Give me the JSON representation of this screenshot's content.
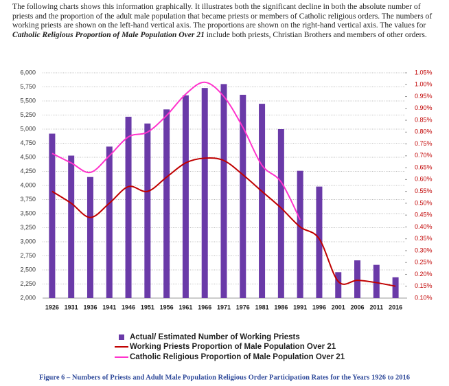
{
  "intro": [
    "The following charts shows this information graphically. It illustrates both the significant decline in both the absolute number of priests and the proportion of the adult male population that became priests or members of Catholic religious orders. The numbers of working priests are shown on the left-hand vertical axis. The proportions are shown on the right-hand vertical axis. The values for ",
    "Catholic Religious Proportion of Male Population Over 21",
    " include both priests, Christian Brothers and members of other orders."
  ],
  "chart_data": {
    "type": "bar",
    "categories": [
      "1926",
      "1931",
      "1936",
      "1941",
      "1946",
      "1951",
      "1956",
      "1961",
      "1966",
      "1971",
      "1976",
      "1981",
      "1986",
      "1991",
      "1996",
      "2001",
      "2006",
      "2011",
      "2016"
    ],
    "series": [
      {
        "name": "Actual/ Estimated Number of Working Priests",
        "type": "bar",
        "color": "#6a3aa8",
        "values": [
          4920,
          4530,
          4150,
          4690,
          5220,
          5100,
          5350,
          5600,
          5730,
          5800,
          5610,
          5450,
          5000,
          4260,
          3980,
          2460,
          2670,
          2590,
          2370
        ]
      },
      {
        "name": "Working Priests Proportion of Male Population Over 21",
        "type": "line",
        "axis": "y2",
        "color": "#c00000",
        "values": [
          0.55,
          0.5,
          0.44,
          0.5,
          0.57,
          0.55,
          0.61,
          0.67,
          0.69,
          0.68,
          0.62,
          0.55,
          0.48,
          0.4,
          0.35,
          0.17,
          0.175,
          0.165,
          0.15
        ]
      },
      {
        "name": "Catholic Religious Proportion of Male Population Over 21",
        "type": "line",
        "axis": "y2",
        "color": "#ff33cc",
        "values": [
          0.71,
          0.67,
          0.63,
          0.7,
          0.78,
          0.8,
          0.87,
          0.96,
          1.01,
          0.95,
          0.82,
          0.66,
          0.59,
          0.43,
          null,
          null,
          null,
          null,
          null
        ]
      }
    ],
    "ylim": [
      2000,
      6000
    ],
    "yticks": [
      {
        "value": 2000,
        "label": "2,000"
      },
      {
        "value": 2250,
        "label": "2,250"
      },
      {
        "value": 2500,
        "label": "2,500"
      },
      {
        "value": 2750,
        "label": "2,750"
      },
      {
        "value": 3000,
        "label": "3,000"
      },
      {
        "value": 3250,
        "label": "3,250"
      },
      {
        "value": 3500,
        "label": "3,500"
      },
      {
        "value": 3750,
        "label": "3,750"
      },
      {
        "value": 4000,
        "label": "4,000"
      },
      {
        "value": 4250,
        "label": "4,250"
      },
      {
        "value": 4500,
        "label": "4,500"
      },
      {
        "value": 4750,
        "label": "4,750"
      },
      {
        "value": 5000,
        "label": "5,000"
      },
      {
        "value": 5250,
        "label": "5,250"
      },
      {
        "value": 5500,
        "label": "5,500"
      },
      {
        "value": 5750,
        "label": "5,750"
      },
      {
        "value": 6000,
        "label": "6,000"
      }
    ],
    "y2lim": [
      0.1,
      1.05
    ],
    "y2ticks": [
      {
        "value": 0.1,
        "label": "0.10%"
      },
      {
        "value": 0.15,
        "label": "0.15%"
      },
      {
        "value": 0.2,
        "label": "0.20%"
      },
      {
        "value": 0.25,
        "label": "0.25%"
      },
      {
        "value": 0.3,
        "label": "0.30%"
      },
      {
        "value": 0.35,
        "label": "0.35%"
      },
      {
        "value": 0.4,
        "label": "0.40%"
      },
      {
        "value": 0.45,
        "label": "0.45%"
      },
      {
        "value": 0.5,
        "label": "0.50%"
      },
      {
        "value": 0.55,
        "label": "0.55%"
      },
      {
        "value": 0.6,
        "label": "0.60%"
      },
      {
        "value": 0.65,
        "label": "0.65%"
      },
      {
        "value": 0.7,
        "label": "0.70%"
      },
      {
        "value": 0.75,
        "label": "0.75%"
      },
      {
        "value": 0.8,
        "label": "0.80%"
      },
      {
        "value": 0.85,
        "label": "0.85%"
      },
      {
        "value": 0.9,
        "label": "0.90%"
      },
      {
        "value": 0.95,
        "label": "0.95%"
      },
      {
        "value": 1.0,
        "label": "1.00%"
      },
      {
        "value": 1.05,
        "label": "1.05%"
      }
    ],
    "grid": true,
    "legend": "bottom"
  },
  "caption": "Figure 6 – Numbers of Priests and Adult Male Population Religious Order Participation Rates for the Years 1926 to 2016"
}
